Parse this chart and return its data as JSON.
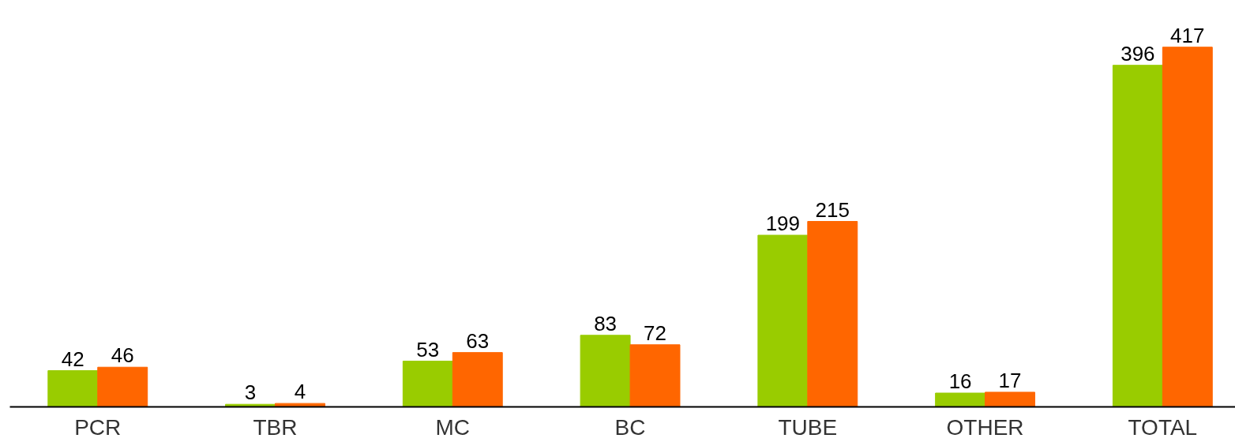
{
  "chart_data": {
    "type": "bar",
    "categories": [
      "PCR",
      "TBR",
      "MC",
      "BC",
      "TUBE",
      "OTHER",
      "TOTAL"
    ],
    "series": [
      {
        "color": "#99cc00",
        "values": [
          42,
          3,
          53,
          83,
          199,
          16,
          396
        ]
      },
      {
        "color": "#ff6600",
        "values": [
          46,
          4,
          63,
          72,
          215,
          17,
          417
        ]
      }
    ],
    "data_labels": true,
    "grid": false
  }
}
